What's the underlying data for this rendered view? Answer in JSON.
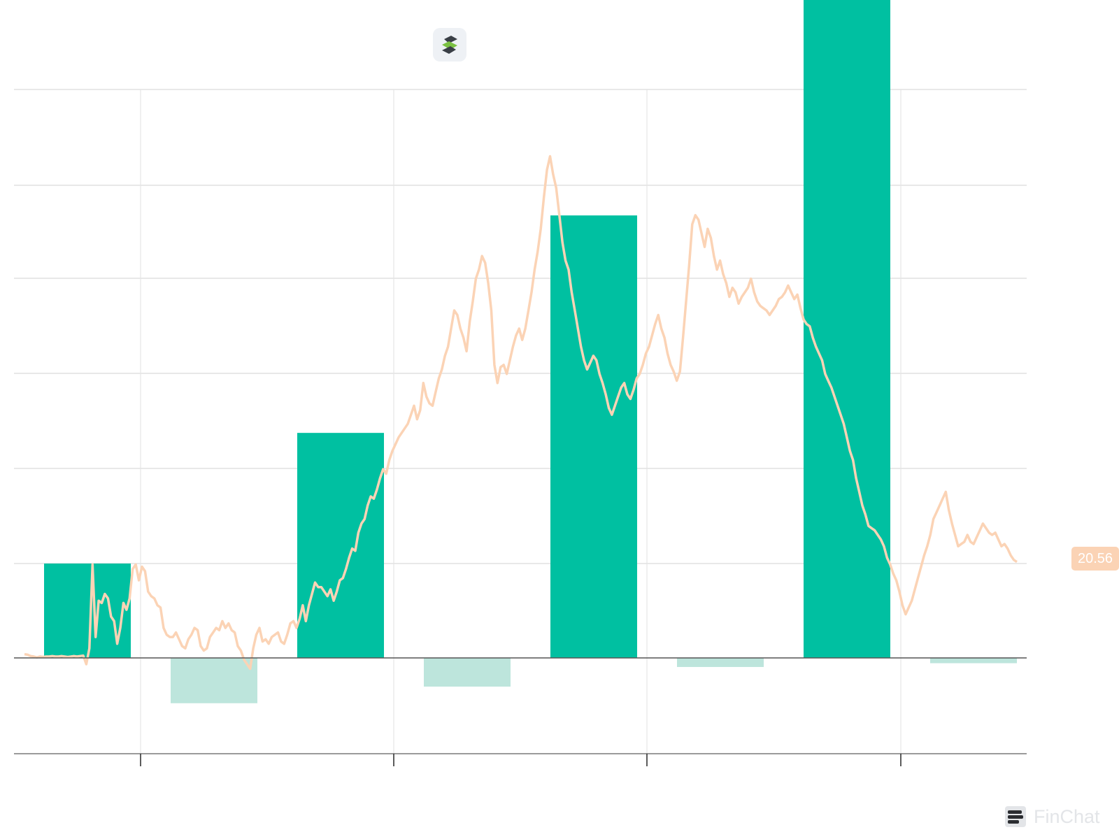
{
  "chart_data": {
    "type": "bar",
    "bar_scale": {
      "baseline_value": 0,
      "bars": [
        {
          "value": 12.5,
          "positive": true
        },
        {
          "value": -6,
          "positive": false
        },
        {
          "value": 29.8,
          "positive": true
        },
        {
          "value": -3.8,
          "positive": false
        },
        {
          "value": 58.6,
          "positive": true
        },
        {
          "value": -1.2,
          "positive": false
        },
        {
          "value": 89.3,
          "positive": true
        },
        {
          "value": -0.7,
          "positive": false
        }
      ]
    },
    "line_series": [
      0.2,
      0.1,
      -0.2,
      -0.3,
      -0.5,
      -0.3,
      -0.4,
      -0.3,
      -0.3,
      -0.2,
      -0.3,
      -0.3,
      -0.2,
      -0.3,
      -0.4,
      -0.3,
      -0.2,
      -0.3,
      -0.2,
      -0.1,
      -2.0,
      1.5,
      20.0,
      4.0,
      12.0,
      11.5,
      13.5,
      12.5,
      8.5,
      7.5,
      2.5,
      6.0,
      11.5,
      10.0,
      12.5,
      19.0,
      20.0,
      16.5,
      19.5,
      18.5,
      14.0,
      13.0,
      12.5,
      11.0,
      10.5,
      6.0,
      4.5,
      4.0,
      4.0,
      5.0,
      3.5,
      2.0,
      1.5,
      3.5,
      4.5,
      6.0,
      5.5,
      2.0,
      1.0,
      1.5,
      4.0,
      5.0,
      6.0,
      5.5,
      7.5,
      6.0,
      7.0,
      5.5,
      5.0,
      2.0,
      1.0,
      -1.0,
      -2.0,
      -3.0,
      1.5,
      4.5,
      6.0,
      3.0,
      3.5,
      2.5,
      4.0,
      4.5,
      5.0,
      3.0,
      2.5,
      4.5,
      7.0,
      7.5,
      6.0,
      8.0,
      11.0,
      7.5,
      11.0,
      13.5,
      16.0,
      15.0,
      15.0,
      14.0,
      13.0,
      14.5,
      12.0,
      14.0,
      16.5,
      17.0,
      19.0,
      21.5,
      23.5,
      23.0,
      27.0,
      29.0,
      30.0,
      33.0,
      35.0,
      34.5,
      36.5,
      39.0,
      41.0,
      40.0,
      43.0,
      45.0,
      46.5,
      48.0,
      49.0,
      50.0,
      51.0,
      53.0,
      55.0,
      52.0,
      54.0,
      60.0,
      57.0,
      55.5,
      55.0,
      58.0,
      61.0,
      63.0,
      66.0,
      68.0,
      72.0,
      76.0,
      75.0,
      72.0,
      70.0,
      67.0,
      73.5,
      78.0,
      83.0,
      85.0,
      88.0,
      86.5,
      82.0,
      76.0,
      64.0,
      60.0,
      63.5,
      64.0,
      62.0,
      65.0,
      68.0,
      70.5,
      72.0,
      69.5,
      72.0,
      76.0,
      80.0,
      85.0,
      89.0,
      94.0,
      101.0,
      107.0,
      110.0,
      106.0,
      103.0,
      97.0,
      91.0,
      87.0,
      85.0,
      80.0,
      76.0,
      72.0,
      68.0,
      65.0,
      63.0,
      64.5,
      66.0,
      65.0,
      62.0,
      60.0,
      57.5,
      54.5,
      53.0,
      55.0,
      57.0,
      59.0,
      60.0,
      57.5,
      56.5,
      58.5,
      61.0,
      62.0,
      64.0,
      66.5,
      68.0,
      70.5,
      73.0,
      75.0,
      72.0,
      70.0,
      66.5,
      64.0,
      62.5,
      60.5,
      62.5,
      70.0,
      78.0,
      86.0,
      95.0,
      97.0,
      96.0,
      93.0,
      90.0,
      94.0,
      92.0,
      88.0,
      85.0,
      87.0,
      84.0,
      82.0,
      79.0,
      81.0,
      80.0,
      77.5,
      79.0,
      80.0,
      81.0,
      83.0,
      80.0,
      78.0,
      77.0,
      76.5,
      76.0,
      75.0,
      76.0,
      77.0,
      78.5,
      79.0,
      80.0,
      81.5,
      80.0,
      78.5,
      79.5,
      76.5,
      74.0,
      73.0,
      72.5,
      70.0,
      68.0,
      66.5,
      65.0,
      62.0,
      60.5,
      59.0,
      57.0,
      55.0,
      53.0,
      51.0,
      48.0,
      45.0,
      43.0,
      39.0,
      36.0,
      33.0,
      31.0,
      28.5,
      28.0,
      27.5,
      26.5,
      25.5,
      24.0,
      21.5,
      20.0,
      18.0,
      16.5,
      14.0,
      11.0,
      9.0,
      10.5,
      12.0,
      14.5,
      17.0,
      19.5,
      22.0,
      24.0,
      26.5,
      30.0,
      31.5,
      33.0,
      34.5,
      36.0,
      32.0,
      29.0,
      26.5,
      24.0,
      24.5,
      25.0,
      26.5,
      25.0,
      24.5,
      26.0,
      27.5,
      29.0,
      28.0,
      27.0,
      26.5,
      27.0,
      25.5,
      24.0,
      24.5,
      23.5,
      22.0,
      21.0,
      20.56
    ],
    "line_range": [
      -2,
      111
    ],
    "grid": true,
    "last_value_label": "20.56",
    "colors": {
      "positive_bar": "#00c0a1",
      "negative_bar": "#bde5dc",
      "line": "#fbd3b5",
      "grid": "#d9d9d9",
      "axis": "#555555"
    }
  },
  "branding": {
    "logo_icon": "s-brand-logo-icon",
    "brand_mark_icon": "finchat-logo-icon",
    "brand_name": "FinChat"
  }
}
